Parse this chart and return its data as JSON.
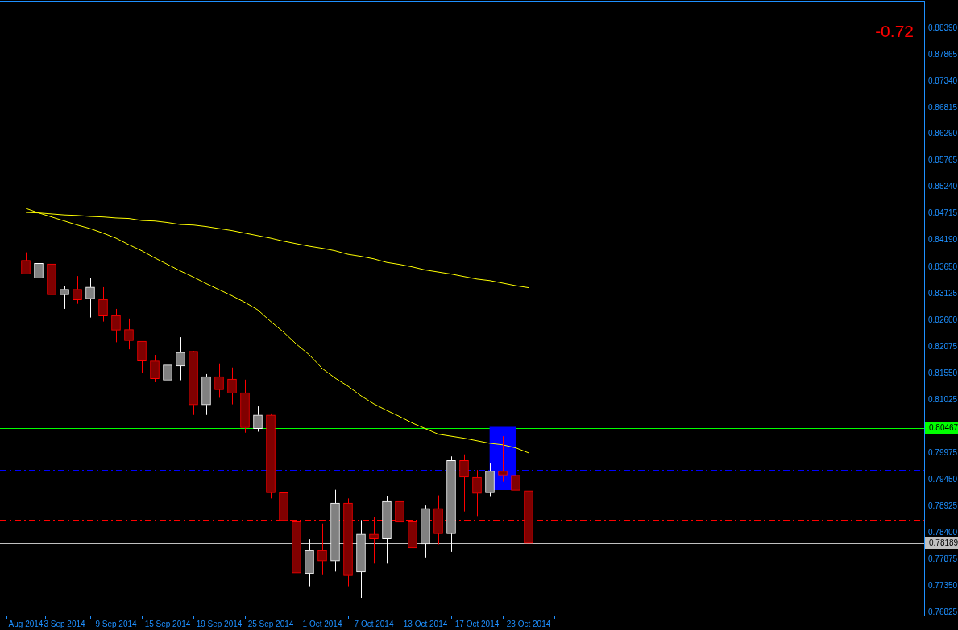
{
  "chart_data": {
    "type": "candlestick",
    "categories": [
      "Aug 2014",
      null,
      null,
      "3 Sep 2014",
      null,
      null,
      null,
      "9 Sep 2014",
      null,
      null,
      null,
      "15 Sep 2014",
      null,
      null,
      null,
      "19 Sep 2014",
      null,
      null,
      null,
      "25 Sep 2014",
      null,
      null,
      null,
      "1 Oct 2014",
      null,
      null,
      null,
      "7 Oct 2014",
      null,
      null,
      null,
      "13 Oct 2014",
      null,
      null,
      null,
      "17 Oct 2014",
      null,
      null,
      null,
      "23 Oct 2014"
    ],
    "ohlc": [
      [
        0.8379,
        0.8395,
        0.8352,
        0.8352
      ],
      [
        0.8344,
        0.8387,
        0.8344,
        0.8373
      ],
      [
        0.8372,
        0.8388,
        0.8287,
        0.8311
      ],
      [
        0.8311,
        0.8329,
        0.8283,
        0.8322
      ],
      [
        0.8322,
        0.8348,
        0.8293,
        0.8301
      ],
      [
        0.8303,
        0.8345,
        0.8266,
        0.8326
      ],
      [
        0.8302,
        0.8326,
        0.8258,
        0.8269
      ],
      [
        0.827,
        0.8283,
        0.8217,
        0.8241
      ],
      [
        0.8242,
        0.8264,
        0.8203,
        0.822
      ],
      [
        0.8219,
        0.8219,
        0.8157,
        0.818
      ],
      [
        0.818,
        0.8192,
        0.8138,
        0.8145
      ],
      [
        0.8142,
        0.8178,
        0.8118,
        0.8172
      ],
      [
        0.817,
        0.8227,
        0.8142,
        0.8197
      ],
      [
        0.8199,
        0.82,
        0.8073,
        0.8093
      ],
      [
        0.8093,
        0.8154,
        0.8073,
        0.8149
      ],
      [
        0.8149,
        0.8175,
        0.8107,
        0.8123
      ],
      [
        0.8144,
        0.8167,
        0.8094,
        0.8116
      ],
      [
        0.8117,
        0.8143,
        0.8038,
        0.8048
      ],
      [
        0.8046,
        0.809,
        0.804,
        0.8073
      ],
      [
        0.8073,
        0.8076,
        0.7908,
        0.7919
      ],
      [
        0.7919,
        0.7953,
        0.7855,
        0.7864
      ],
      [
        0.7862,
        0.7866,
        0.7704,
        0.776
      ],
      [
        0.7759,
        0.7827,
        0.7734,
        0.7805
      ],
      [
        0.7805,
        0.7858,
        0.7756,
        0.7784
      ],
      [
        0.7784,
        0.7925,
        0.7763,
        0.7899
      ],
      [
        0.7899,
        0.7908,
        0.7734,
        0.7755
      ],
      [
        0.7762,
        0.7865,
        0.7711,
        0.7837
      ],
      [
        0.7837,
        0.7871,
        0.7779,
        0.7828
      ],
      [
        0.7828,
        0.7912,
        0.7779,
        0.7902
      ],
      [
        0.7902,
        0.7971,
        0.7841,
        0.7861
      ],
      [
        0.7862,
        0.7875,
        0.7797,
        0.781
      ],
      [
        0.7818,
        0.7894,
        0.7791,
        0.7888
      ],
      [
        0.7888,
        0.7914,
        0.7817,
        0.7838
      ],
      [
        0.7838,
        0.7991,
        0.7802,
        0.7983
      ],
      [
        0.7983,
        0.7995,
        0.7882,
        0.795
      ],
      [
        0.795,
        0.7964,
        0.7873,
        0.7918
      ],
      [
        0.7919,
        0.7977,
        0.7911,
        0.7962
      ],
      [
        0.7962,
        0.8031,
        0.7941,
        0.7954
      ],
      [
        0.7954,
        0.7988,
        0.7914,
        0.7924
      ],
      [
        0.7923,
        0.7924,
        0.781,
        0.7819
      ]
    ],
    "colors": [
      "#ff0000",
      "#ffffff",
      "#ff0000",
      "#ffffff",
      "#ff0000",
      "#ffffff",
      "#ff0000",
      "#ff0000",
      "#ff0000",
      "#ff0000",
      "#ff0000",
      "#ffffff",
      "#ffffff",
      "#ff0000",
      "#ffffff",
      "#ff0000",
      "#ff0000",
      "#ff0000",
      "#ffffff",
      "#ff0000",
      "#ff0000",
      "#ff0000",
      "#ffffff",
      "#ff0000",
      "#ffffff",
      "#ff0000",
      "#ffffff",
      "#ff0000",
      "#ffffff",
      "#ff0000",
      "#ff0000",
      "#ffffff",
      "#ff0000",
      "#ffffff",
      "#ff0000",
      "#ff0000",
      "#ffffff",
      "#ff0000",
      "#ff0000",
      "#ff0000"
    ],
    "series": [
      {
        "type": "bar",
        "color": "#0000ff",
        "base": [
          null,
          null,
          null,
          null,
          null,
          null,
          null,
          null,
          null,
          null,
          null,
          null,
          null,
          null,
          null,
          null,
          null,
          null,
          null,
          null,
          null,
          null,
          null,
          null,
          null,
          null,
          null,
          null,
          null,
          null,
          null,
          null,
          null,
          null,
          null,
          null,
          null,
          0.7925,
          null,
          null
        ],
        "values": [
          null,
          null,
          null,
          null,
          null,
          null,
          null,
          null,
          null,
          null,
          null,
          null,
          null,
          null,
          null,
          null,
          null,
          null,
          null,
          null,
          null,
          null,
          null,
          null,
          null,
          null,
          null,
          null,
          null,
          null,
          null,
          null,
          null,
          null,
          null,
          null,
          null,
          0.0124,
          null,
          null
        ]
      },
      {
        "type": "line",
        "color": "#ffff00",
        "values": [
          0.8474,
          0.8473,
          0.8471,
          0.8469,
          0.8468,
          0.8466,
          0.8465,
          0.8463,
          0.8462,
          0.8458,
          0.8457,
          0.8454,
          0.845,
          0.8449,
          0.8446,
          0.8442,
          0.8438,
          0.8433,
          0.8428,
          0.8423,
          0.8417,
          0.8412,
          0.8407,
          0.8403,
          0.8398,
          0.8391,
          0.8387,
          0.8382,
          0.8375,
          0.8371,
          0.8366,
          0.836,
          0.8356,
          0.8352,
          0.8347,
          0.8342,
          0.8339,
          0.8334,
          0.8329,
          0.8325
        ]
      },
      {
        "type": "line",
        "color": "#ffff00",
        "values": [
          0.8482,
          0.8473,
          0.8465,
          0.8457,
          0.8449,
          0.8442,
          0.8433,
          0.8423,
          0.841,
          0.8398,
          0.8384,
          0.8371,
          0.8358,
          0.8346,
          0.8333,
          0.8321,
          0.8309,
          0.8296,
          0.8281,
          0.8258,
          0.8237,
          0.8213,
          0.8192,
          0.8165,
          0.8146,
          0.813,
          0.8111,
          0.8095,
          0.8082,
          0.807,
          0.8057,
          0.8046,
          0.8035,
          0.8031,
          0.8027,
          0.8022,
          0.8017,
          0.8014,
          0.8008,
          0.7998
        ]
      }
    ],
    "ylim": [
      0.7676,
      0.8893
    ],
    "yticks": [
      {
        "value": 0.8839,
        "label": "0.88390"
      },
      0.87865,
      {
        "value": 0.8734,
        "label": "0.87340"
      },
      0.86815,
      {
        "value": 0.8629,
        "label": "0.86290"
      },
      0.85765,
      {
        "value": 0.8524,
        "label": "0.85240"
      },
      0.84715,
      {
        "value": 0.8419,
        "label": "0.84190"
      },
      {
        "value": 0.8365,
        "label": "0.83650"
      },
      0.83125,
      {
        "value": 0.826,
        "label": "0.82600"
      },
      0.82075,
      {
        "value": 0.8155,
        "label": "0.81550"
      },
      0.81025,
      0.79975,
      {
        "value": 0.7945,
        "label": "0.79450"
      },
      0.78925,
      {
        "value": 0.784,
        "label": "0.78400"
      },
      0.77875,
      {
        "value": 0.7735,
        "label": "0.77350"
      },
      0.76825
    ],
    "ref_lines": [
      {
        "axis": "y",
        "value": 0.80467,
        "label": "0.80467",
        "color": "#00ff00",
        "line_style": "solid"
      },
      {
        "axis": "y",
        "value": 0.7964,
        "color": "#0000ff",
        "line_style": "dashed"
      },
      {
        "axis": "y",
        "value": 0.7865,
        "color": "#ff0000",
        "line_style": "dashed"
      },
      {
        "axis": "y",
        "value": 0.78189,
        "label": "0.78189",
        "color": "#c0c0c0",
        "line_style": "solid"
      }
    ],
    "annotations": [
      "-0.72"
    ]
  }
}
